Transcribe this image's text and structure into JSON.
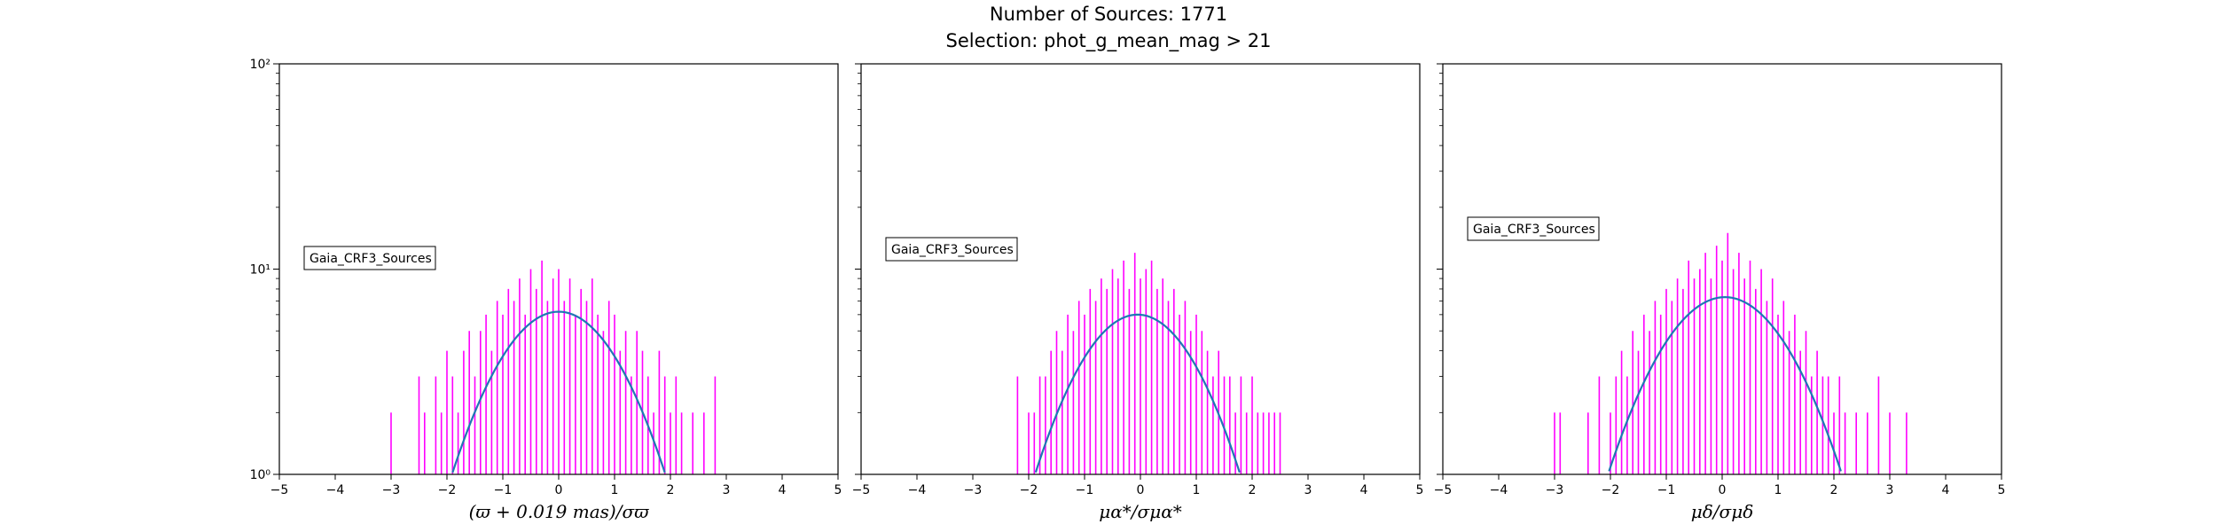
{
  "figure": {
    "title_line1": "Number of Sources: 1771",
    "title_line2": "Selection: phot_g_mean_mag > 21"
  },
  "colors": {
    "histogram": "#ff00ff",
    "fit": "#1f77b4"
  },
  "chart_data": [
    {
      "type": "bar",
      "style": "histogram (step)",
      "xlabel": "(ϖ + 0.019 mas)/σϖ",
      "xlim": [
        -5,
        5
      ],
      "ylim": [
        1,
        100
      ],
      "yscale": "log",
      "x_ticks": [
        "−5",
        "−4",
        "−3",
        "−2",
        "−1",
        "0",
        "1",
        "2",
        "3",
        "4",
        "5"
      ],
      "y_ticks": [
        "10⁰",
        "10¹",
        "10²"
      ],
      "legend": {
        "label": "Gaia_CRF3_Sources",
        "position": "center-left"
      },
      "fit_curve": {
        "type": "gaussian",
        "peak": 6.2,
        "mean": 0.0,
        "sigma": 1.0
      },
      "series": [
        {
          "name": "Gaia_CRF3_Sources",
          "color": "#ff00ff",
          "x": [
            -3.0,
            -2.5,
            -2.4,
            -2.2,
            -2.1,
            -2.0,
            -1.9,
            -1.8,
            -1.7,
            -1.6,
            -1.5,
            -1.4,
            -1.3,
            -1.2,
            -1.1,
            -1.0,
            -0.9,
            -0.8,
            -0.7,
            -0.6,
            -0.5,
            -0.4,
            -0.3,
            -0.2,
            -0.1,
            0.0,
            0.1,
            0.2,
            0.3,
            0.4,
            0.5,
            0.6,
            0.7,
            0.8,
            0.9,
            1.0,
            1.1,
            1.2,
            1.3,
            1.4,
            1.5,
            1.6,
            1.7,
            1.8,
            1.9,
            2.0,
            2.1,
            2.2,
            2.4,
            2.6,
            2.8
          ],
          "values": [
            2,
            3,
            2,
            3,
            2,
            4,
            3,
            2,
            4,
            5,
            3,
            5,
            6,
            4,
            7,
            6,
            8,
            7,
            9,
            6,
            10,
            8,
            11,
            7,
            9,
            10,
            7,
            9,
            6,
            8,
            7,
            9,
            6,
            5,
            7,
            6,
            4,
            5,
            3,
            5,
            4,
            3,
            2,
            4,
            3,
            2,
            3,
            2,
            2,
            2,
            3
          ]
        }
      ]
    },
    {
      "type": "bar",
      "style": "histogram (step)",
      "xlabel": "μα*/σμα*",
      "xlim": [
        -5,
        5
      ],
      "ylim": [
        1,
        100
      ],
      "yscale": "log",
      "x_ticks": [
        "−5",
        "−4",
        "−3",
        "−2",
        "−1",
        "0",
        "1",
        "2",
        "3",
        "4",
        "5"
      ],
      "y_ticks": [],
      "legend": {
        "label": "Gaia_CRF3_Sources",
        "position": "center-left"
      },
      "fit_curve": {
        "type": "gaussian",
        "peak": 6.0,
        "mean": -0.05,
        "sigma": 0.97
      },
      "series": [
        {
          "name": "Gaia_CRF3_Sources",
          "color": "#ff00ff",
          "x": [
            -2.2,
            -2.0,
            -1.9,
            -1.8,
            -1.7,
            -1.6,
            -1.5,
            -1.4,
            -1.3,
            -1.2,
            -1.1,
            -1.0,
            -0.9,
            -0.8,
            -0.7,
            -0.6,
            -0.5,
            -0.4,
            -0.3,
            -0.2,
            -0.1,
            0.0,
            0.1,
            0.2,
            0.3,
            0.4,
            0.5,
            0.6,
            0.7,
            0.8,
            0.9,
            1.0,
            1.1,
            1.2,
            1.3,
            1.4,
            1.5,
            1.6,
            1.7,
            1.8,
            1.9,
            2.0,
            2.1,
            2.2,
            2.3,
            2.4,
            2.5
          ],
          "values": [
            3,
            2,
            2,
            3,
            3,
            4,
            5,
            4,
            6,
            5,
            7,
            6,
            8,
            7,
            9,
            8,
            10,
            9,
            11,
            8,
            12,
            9,
            10,
            11,
            8,
            9,
            7,
            8,
            6,
            7,
            5,
            6,
            5,
            4,
            3,
            4,
            3,
            3,
            2,
            3,
            2,
            3,
            2,
            2,
            2,
            2,
            2
          ]
        }
      ]
    },
    {
      "type": "bar",
      "style": "histogram (step)",
      "xlabel": "μδ/σμδ",
      "xlim": [
        -5,
        5
      ],
      "ylim": [
        1,
        100
      ],
      "yscale": "log",
      "x_ticks": [
        "−5",
        "−4",
        "−3",
        "−2",
        "−1",
        "0",
        "1",
        "2",
        "3",
        "4",
        "5"
      ],
      "y_ticks": [],
      "legend": {
        "label": "Gaia_CRF3_Sources",
        "position": "upper-left"
      },
      "fit_curve": {
        "type": "gaussian",
        "peak": 7.3,
        "mean": 0.05,
        "sigma": 1.05
      },
      "series": [
        {
          "name": "Gaia_CRF3_Sources",
          "color": "#ff00ff",
          "x": [
            -3.0,
            -2.9,
            -2.4,
            -2.2,
            -2.0,
            -1.9,
            -1.8,
            -1.7,
            -1.6,
            -1.5,
            -1.4,
            -1.3,
            -1.2,
            -1.1,
            -1.0,
            -0.9,
            -0.8,
            -0.7,
            -0.6,
            -0.5,
            -0.4,
            -0.3,
            -0.2,
            -0.1,
            0.0,
            0.1,
            0.2,
            0.3,
            0.4,
            0.5,
            0.6,
            0.7,
            0.8,
            0.9,
            1.0,
            1.1,
            1.2,
            1.3,
            1.4,
            1.5,
            1.6,
            1.7,
            1.8,
            1.9,
            2.0,
            2.1,
            2.2,
            2.4,
            2.6,
            2.8,
            3.0,
            3.3
          ],
          "values": [
            2,
            2,
            2,
            3,
            2,
            3,
            4,
            3,
            5,
            4,
            6,
            5,
            7,
            6,
            8,
            7,
            9,
            8,
            11,
            9,
            10,
            12,
            9,
            13,
            11,
            15,
            10,
            12,
            9,
            11,
            8,
            10,
            7,
            9,
            6,
            7,
            5,
            6,
            4,
            5,
            3,
            4,
            3,
            3,
            2,
            3,
            2,
            2,
            2,
            3,
            2,
            2
          ]
        }
      ]
    }
  ]
}
